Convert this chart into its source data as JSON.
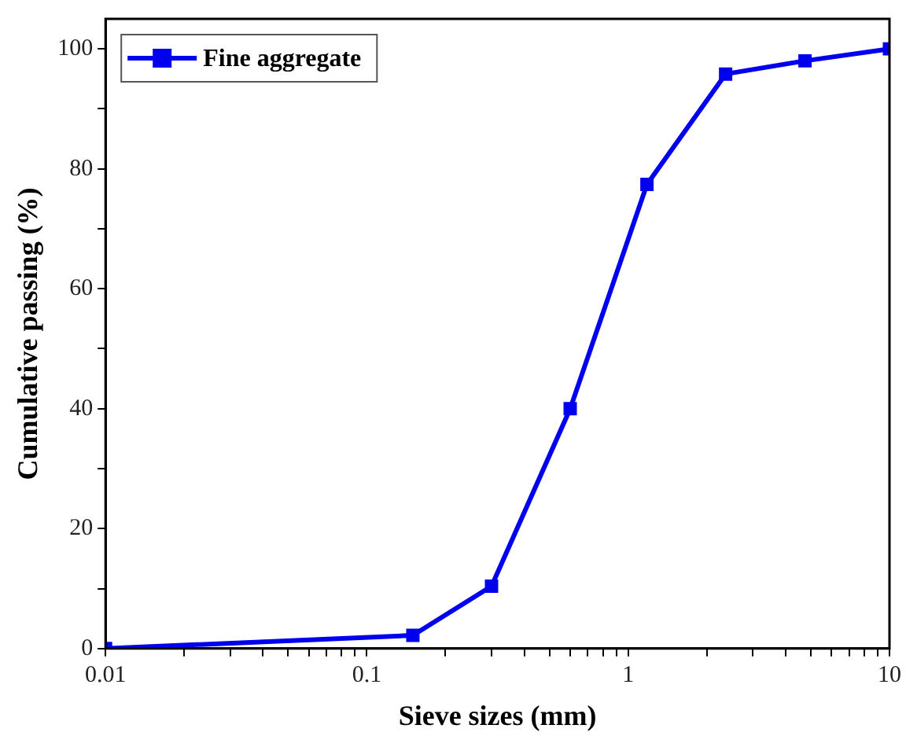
{
  "chart_data": {
    "type": "line",
    "xlabel": "Sieve sizes (mm)",
    "ylabel": "Cumulative passing (%)",
    "x": [
      0.01,
      0.15,
      0.3,
      0.6,
      1.18,
      2.36,
      4.75,
      10
    ],
    "series": [
      {
        "name": "Fine aggregate",
        "color": "#0000ee",
        "values": [
          0,
          2.2,
          10.4,
          40,
          77.4,
          95.8,
          98,
          100
        ]
      }
    ],
    "log": "x",
    "xlim": [
      0.01,
      10
    ],
    "ylim": [
      0,
      105
    ],
    "xticks": [
      0.01,
      {
        "value": 0.02,
        "label": null
      },
      {
        "value": 0.03,
        "label": null
      },
      {
        "value": 0.04,
        "label": null
      },
      {
        "value": 0.05,
        "label": null
      },
      {
        "value": 0.06,
        "label": null
      },
      {
        "value": 0.07,
        "label": null
      },
      {
        "value": 0.08,
        "label": null
      },
      {
        "value": 0.09,
        "label": null
      },
      0.1,
      {
        "value": 0.2,
        "label": null
      },
      {
        "value": 0.3,
        "label": null
      },
      {
        "value": 0.4,
        "label": null
      },
      {
        "value": 0.5,
        "label": null
      },
      {
        "value": 0.6,
        "label": null
      },
      {
        "value": 0.7,
        "label": null
      },
      {
        "value": 0.8,
        "label": null
      },
      {
        "value": 0.9,
        "label": null
      },
      1,
      {
        "value": 2,
        "label": null
      },
      {
        "value": 3,
        "label": null
      },
      {
        "value": 4,
        "label": null
      },
      {
        "value": 5,
        "label": null
      },
      {
        "value": 6,
        "label": null
      },
      {
        "value": 7,
        "label": null
      },
      {
        "value": 8,
        "label": null
      },
      {
        "value": 9,
        "label": null
      },
      10
    ],
    "yticks": [
      0,
      {
        "value": 10,
        "label": null
      },
      20,
      {
        "value": 30,
        "label": null
      },
      40,
      {
        "value": 50,
        "label": null
      },
      60,
      {
        "value": 70,
        "label": null
      },
      80,
      {
        "value": 90,
        "label": null
      },
      100
    ],
    "grid": false,
    "legend": "top left",
    "marker": "square",
    "line_style": "solid"
  }
}
